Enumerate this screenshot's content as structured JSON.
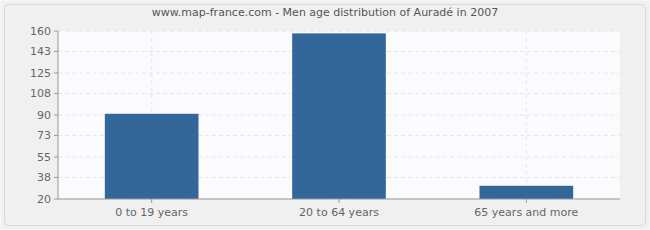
{
  "chart_data": {
    "type": "bar",
    "title": "www.map-france.com - Men age distribution of Auradé in 2007",
    "categories": [
      "0 to 19 years",
      "20 to 64 years",
      "65 years and more"
    ],
    "values": [
      91,
      158,
      31
    ],
    "color": "#336699",
    "ylim": [
      20,
      160
    ],
    "yticks": [
      20,
      38,
      55,
      73,
      90,
      108,
      125,
      143,
      160
    ],
    "grid": true
  }
}
